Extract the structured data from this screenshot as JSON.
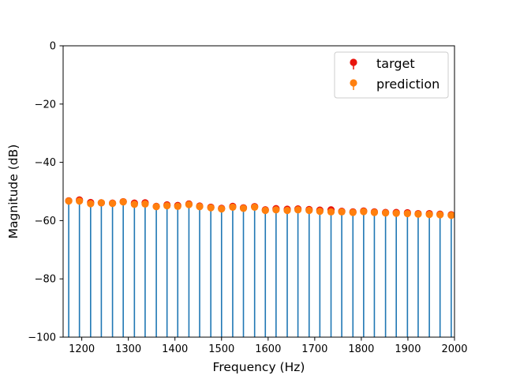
{
  "chart_data": {
    "type": "scatter",
    "title": "",
    "xlabel": "Frequency (Hz)",
    "ylabel": "Magnitude (dB)",
    "xlim": [
      1160,
      2000
    ],
    "ylim": [
      -100,
      0
    ],
    "x_ticks": [
      1200,
      1300,
      1400,
      1500,
      1600,
      1700,
      1800,
      1900,
      2000
    ],
    "y_ticks": [
      0,
      -20,
      -40,
      -60,
      -80,
      -100
    ],
    "x_tick_labels": [
      "1200",
      "1300",
      "1400",
      "1500",
      "1600",
      "1700",
      "1800",
      "1900",
      "2000"
    ],
    "y_tick_labels": [
      "0",
      "−20",
      "−40",
      "−60",
      "−80",
      "−100"
    ],
    "grid": false,
    "legend_position": "top-right",
    "stems": {
      "color": "#1f77b4",
      "baseline": -100
    },
    "x": [
      1172,
      1195,
      1219,
      1242,
      1266,
      1289,
      1313,
      1336,
      1360,
      1383,
      1406,
      1430,
      1453,
      1477,
      1500,
      1524,
      1547,
      1571,
      1594,
      1617,
      1641,
      1664,
      1688,
      1711,
      1735,
      1758,
      1782,
      1805,
      1828,
      1852,
      1875,
      1899,
      1922,
      1946,
      1969,
      1993
    ],
    "series": [
      {
        "name": "target",
        "color": "#e8140c",
        "values": [
          -53.2,
          -52.9,
          -53.8,
          -53.9,
          -54.0,
          -53.5,
          -54.0,
          -53.9,
          -55.1,
          -54.6,
          -54.8,
          -54.3,
          -55.0,
          -55.4,
          -55.8,
          -55.1,
          -55.6,
          -55.2,
          -56.3,
          -55.9,
          -56.1,
          -56.0,
          -56.2,
          -56.4,
          -56.3,
          -56.8,
          -57.0,
          -56.7,
          -57.0,
          -57.2,
          -57.2,
          -57.3,
          -57.6,
          -57.6,
          -57.8,
          -58.0
        ]
      },
      {
        "name": "prediction",
        "color": "#ff7f0e",
        "values": [
          -53.3,
          -53.3,
          -54.2,
          -53.9,
          -54.1,
          -53.6,
          -54.4,
          -54.3,
          -55.2,
          -54.9,
          -55.1,
          -54.5,
          -55.2,
          -55.6,
          -56.0,
          -55.4,
          -55.8,
          -55.4,
          -56.5,
          -56.3,
          -56.5,
          -56.3,
          -56.5,
          -56.8,
          -57.0,
          -57.0,
          -57.2,
          -56.9,
          -57.2,
          -57.4,
          -57.5,
          -57.6,
          -57.8,
          -57.9,
          -58.0,
          -58.2
        ]
      }
    ]
  }
}
